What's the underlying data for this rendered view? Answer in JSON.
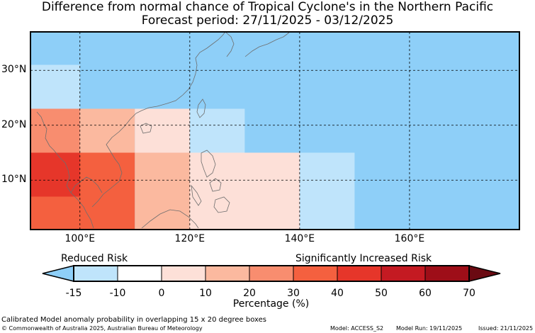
{
  "title_line1": "Difference from normal chance of Tropical Cyclone's in the Northern Pacific",
  "title_line2": "Forecast period: 27/11/2025 - 03/12/2025",
  "map": {
    "lon_range": [
      91,
      180
    ],
    "lat_range": [
      1,
      37
    ],
    "lat_labels": [
      "30°N",
      "20°N",
      "10°N"
    ],
    "lat_values": [
      30,
      20,
      10
    ],
    "lon_labels": [
      "100°E",
      "120°E",
      "140°E",
      "160°E"
    ],
    "lon_values": [
      100,
      120,
      140,
      160
    ],
    "cells": [
      {
        "lon": [
          91,
          180
        ],
        "lat": [
          1,
          37
        ],
        "value": -20
      },
      {
        "lon": [
          91,
          100
        ],
        "lat": [
          23,
          31
        ],
        "value": -12
      },
      {
        "lon": [
          91,
          100
        ],
        "lat": [
          15,
          23
        ],
        "value": 25
      },
      {
        "lon": [
          100,
          110
        ],
        "lat": [
          15,
          23
        ],
        "value": 15
      },
      {
        "lon": [
          110,
          120
        ],
        "lat": [
          15,
          23
        ],
        "value": 0
      },
      {
        "lon": [
          120,
          130
        ],
        "lat": [
          15,
          23
        ],
        "value": -12
      },
      {
        "lon": [
          91,
          110
        ],
        "lat": [
          1,
          15
        ],
        "value": 35
      },
      {
        "lon": [
          91,
          100
        ],
        "lat": [
          7,
          15
        ],
        "value": 45
      },
      {
        "lon": [
          110,
          120
        ],
        "lat": [
          1,
          15
        ],
        "value": 15
      },
      {
        "lon": [
          120,
          140
        ],
        "lat": [
          1,
          15
        ],
        "value": 0
      },
      {
        "lon": [
          140,
          150
        ],
        "lat": [
          1,
          15
        ],
        "value": -12
      }
    ]
  },
  "colorbar": {
    "label_left": "Reduced Risk",
    "label_right": "Significantly Increased Risk",
    "xlabel": "Percentage (%)",
    "ticks": [
      "-15",
      "-10",
      "0",
      "10",
      "20",
      "30",
      "40",
      "50",
      "60",
      "70"
    ],
    "low_extend_color": "#8ecff8",
    "high_extend_color": "#6b0a12",
    "colors": [
      "#bfe4fb",
      "#ffffff",
      "#fde0d8",
      "#fbb99f",
      "#f88d6f",
      "#f4603f",
      "#e6362a",
      "#c41a22",
      "#9e0e18"
    ]
  },
  "footer": {
    "line1": "Calibrated Model anomaly probability in overlapping 15 x 20 degree boxes",
    "line2": "© Commonwealth of Australia 2025, Australian Bureau of Meteorology",
    "model": "Model: ACCESS_S2",
    "model_run": "Model Run: 19/11/2025",
    "issued": "Issued: 21/11/2025"
  }
}
